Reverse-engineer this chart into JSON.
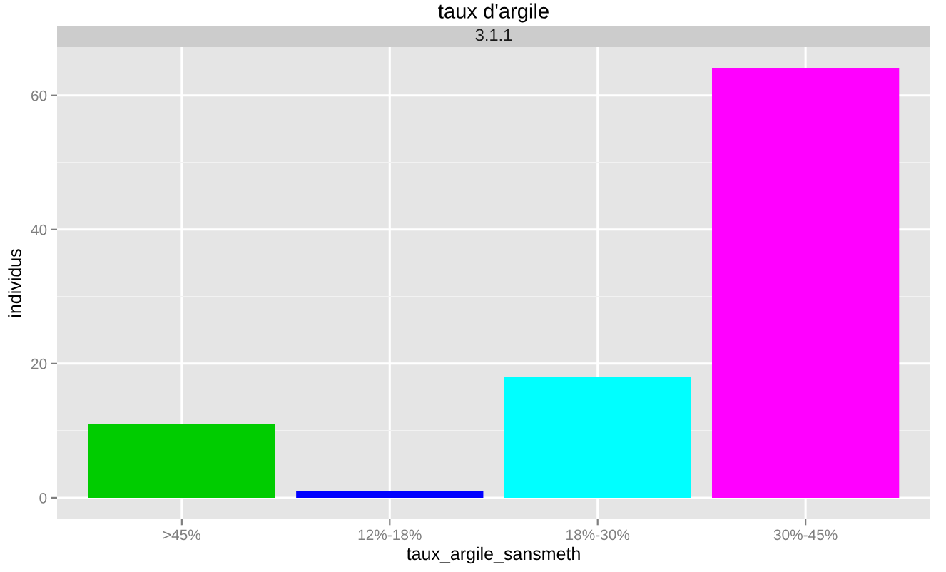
{
  "chart_data": {
    "type": "bar",
    "title": "taux d'argile",
    "subtitle": "3.1.1",
    "xlabel": "taux_argile_sansmeth",
    "ylabel": "individus",
    "categories": [
      ">45%",
      "12%-18%",
      "18%-30%",
      "30%-45%"
    ],
    "values": [
      11,
      1,
      18,
      64
    ],
    "colors": [
      "#00cc00",
      "#0000ff",
      "#00ffff",
      "#ff00ff"
    ],
    "ylim": [
      -3.2,
      67.2
    ],
    "yticks": [
      0,
      20,
      40,
      60
    ],
    "grid": true,
    "legend": false
  }
}
